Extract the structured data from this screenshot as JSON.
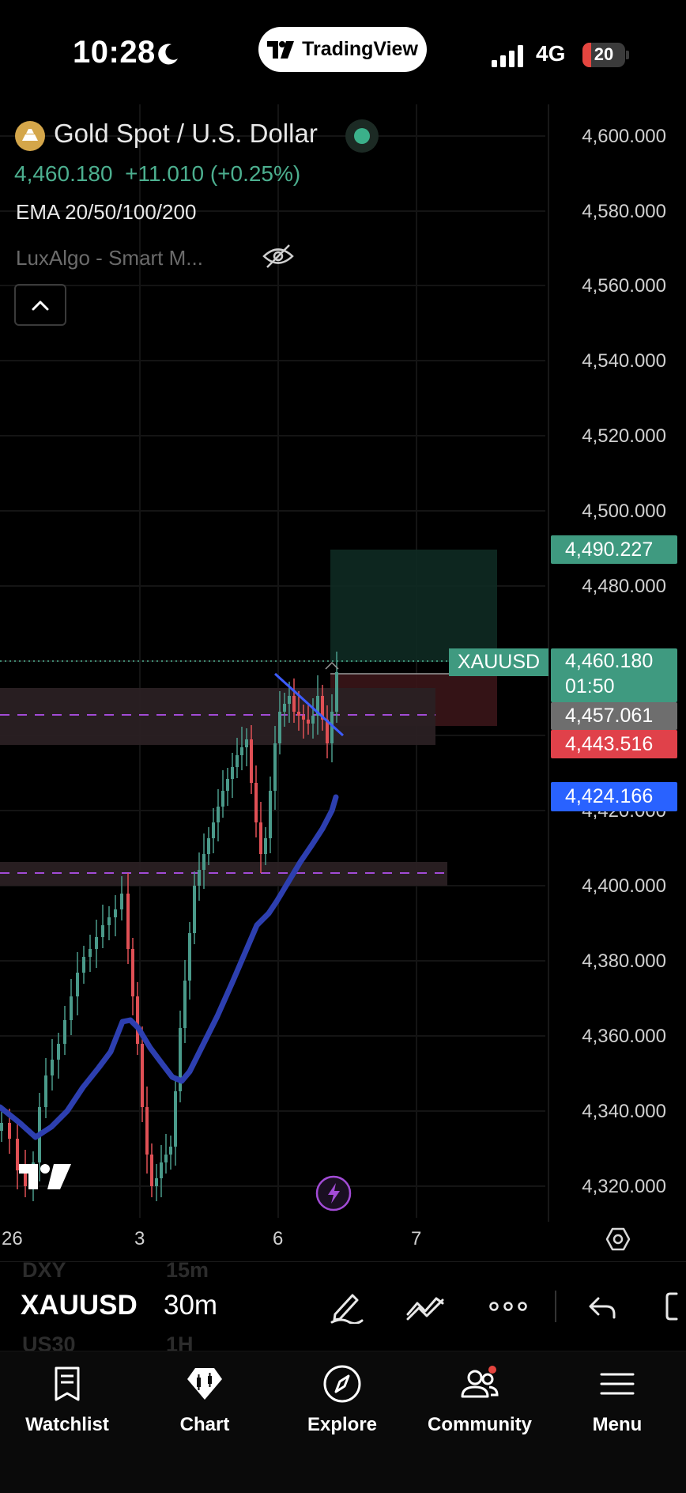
{
  "status_bar": {
    "time": "10:28",
    "app_pill_label": "TradingView",
    "network": "4G",
    "battery": "20",
    "battery_level_percent": 20
  },
  "legend": {
    "symbol_title": "Gold Spot / U.S. Dollar",
    "price_change": "4,460.180  +11.010 (+0.25%)",
    "indicator_ema": "EMA 20/50/100/200",
    "indicator_luxalgo": "LuxAlgo - Smart M..."
  },
  "price_axis": {
    "labels": [
      "4,600.000",
      "4,580.000",
      "4,560.000",
      "4,540.000",
      "4,520.000",
      "4,500.000",
      "4,480.000",
      "4,420.000",
      "4,400.000",
      "4,380.000",
      "4,360.000",
      "4,340.000",
      "4,320.000"
    ],
    "tags": {
      "target": "4,490.227",
      "symbol": "XAUUSD",
      "last_price": "4,460.180",
      "countdown": "01:50",
      "entry": "4,457.061",
      "stop": "4,443.516",
      "ema": "4,424.166"
    }
  },
  "time_axis": {
    "labels": [
      "26",
      "3",
      "6",
      "7"
    ]
  },
  "toolbar": {
    "symbol": "XAUUSD",
    "timeframe": "30m",
    "ghost_symbol_above": "DXY",
    "ghost_tf_above": "15m",
    "ghost_symbol_below": "US30",
    "ghost_tf_below": "1H"
  },
  "bottom_nav": [
    {
      "label": "Watchlist",
      "icon": "watchlist-icon"
    },
    {
      "label": "Chart",
      "icon": "chart-icon"
    },
    {
      "label": "Explore",
      "icon": "compass-icon"
    },
    {
      "label": "Community",
      "icon": "community-icon"
    },
    {
      "label": "Menu",
      "icon": "menu-icon"
    }
  ],
  "colors": {
    "bull": "#4a9a8a",
    "bear": "#e05055",
    "ema_line": "#2d3fb0",
    "target_tag": "#3f9a80",
    "stop_tag": "#e0414a",
    "ema_tag": "#2962ff",
    "entry_tag": "#6e6e6e",
    "zone_fill": "#2a2023"
  }
}
